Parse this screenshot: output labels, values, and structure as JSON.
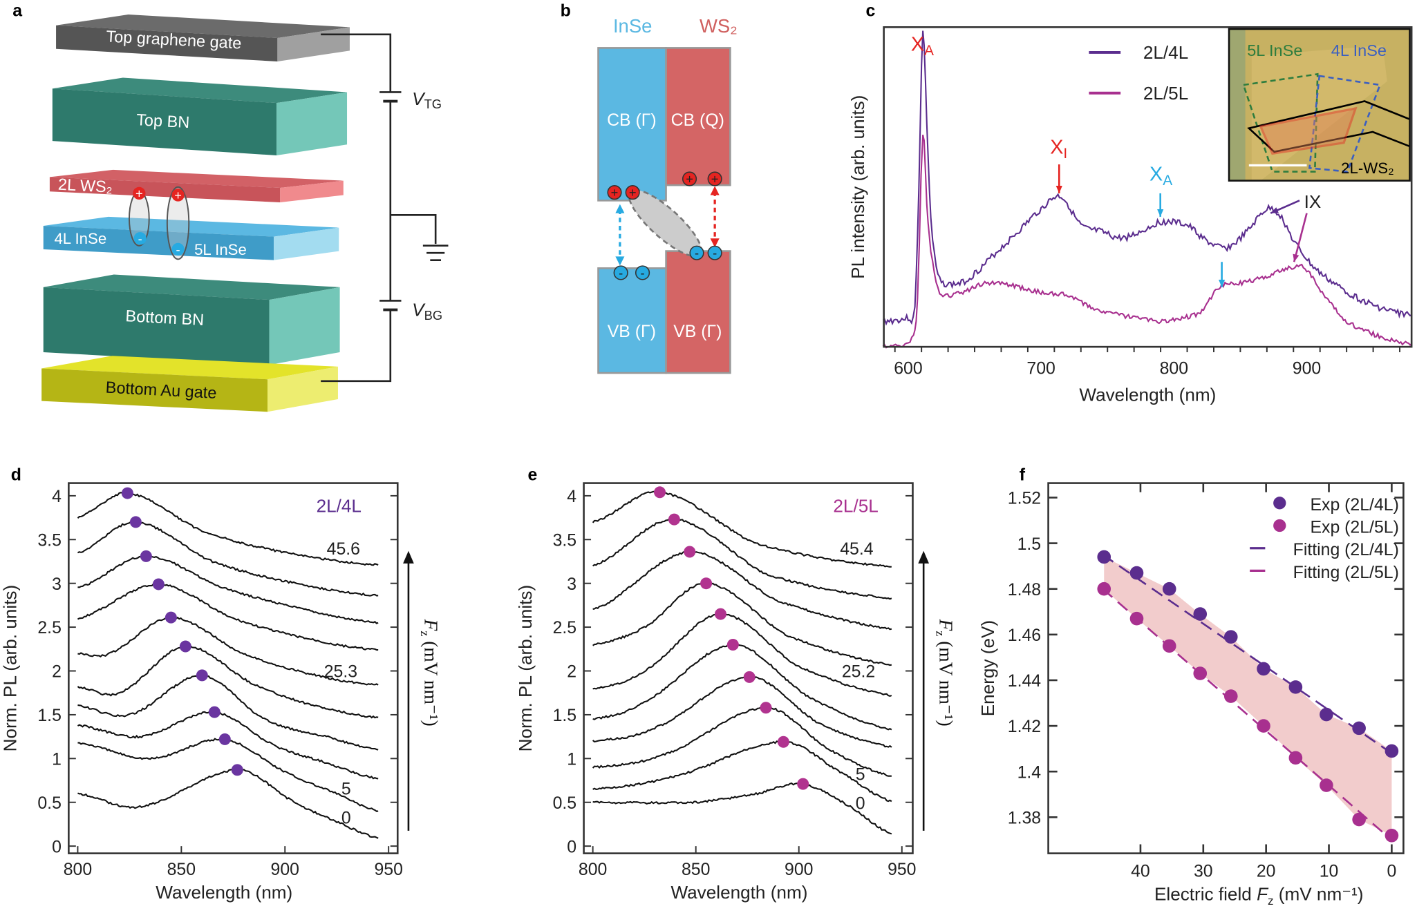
{
  "panel_labels": {
    "a": "a",
    "b": "b",
    "c": "c",
    "d": "d",
    "e": "e",
    "f": "f"
  },
  "colors": {
    "purple": "#5b2d8e",
    "magenta": "#a8308f",
    "red": "#e52421",
    "cyan": "#27aae1",
    "fill_band": "#f2cccc"
  },
  "panel_a": {
    "layers": [
      "Top graphene gate",
      "Top BN",
      "2L WS₂",
      "4L InSe",
      "5L InSe",
      "Bottom BN",
      "Bottom Au gate"
    ],
    "vtg": {
      "v": "V",
      "sub": "TG"
    },
    "vbg": {
      "v": "V",
      "sub": "BG"
    },
    "hole_sign": "+",
    "electron_sign": "-"
  },
  "panel_b": {
    "inse": "InSe",
    "ws2": "WS₂",
    "cb_inse": "CB (Γ)",
    "cb_ws2": "CB (Q)",
    "vb_inse": "VB (Γ)",
    "vb_ws2": "VB (Γ)"
  },
  "chart_data": [
    {
      "panel": "c",
      "type": "line",
      "xlabel": "Wavelength (nm)",
      "ylabel": "PL intensity (arb. units)",
      "xlim": [
        581,
        979
      ],
      "xticks": [
        600,
        700,
        800,
        900
      ],
      "legend_position": "top-center",
      "series": [
        {
          "name": "2L/4L",
          "color": "#5b2d8e",
          "points": [
            [
              581,
              0.08
            ],
            [
              600,
              0.09
            ],
            [
              605,
              0.12
            ],
            [
              608,
              0.5
            ],
            [
              611,
              0.985
            ],
            [
              614,
              0.7
            ],
            [
              617,
              0.4
            ],
            [
              621,
              0.25
            ],
            [
              625,
              0.2
            ],
            [
              640,
              0.2
            ],
            [
              650,
              0.23
            ],
            [
              665,
              0.29
            ],
            [
              680,
              0.35
            ],
            [
              700,
              0.43
            ],
            [
              715,
              0.47
            ],
            [
              730,
              0.38
            ],
            [
              745,
              0.36
            ],
            [
              760,
              0.34
            ],
            [
              775,
              0.36
            ],
            [
              790,
              0.39
            ],
            [
              810,
              0.38
            ],
            [
              825,
              0.33
            ],
            [
              840,
              0.31
            ],
            [
              855,
              0.36
            ],
            [
              870,
              0.43
            ],
            [
              880,
              0.41
            ],
            [
              890,
              0.33
            ],
            [
              905,
              0.25
            ],
            [
              920,
              0.2
            ],
            [
              935,
              0.16
            ],
            [
              950,
              0.13
            ],
            [
              965,
              0.11
            ],
            [
              979,
              0.1
            ]
          ]
        },
        {
          "name": "2L/5L",
          "color": "#a8308f",
          "points": [
            [
              581,
              0
            ],
            [
              600,
              0.01
            ],
            [
              604,
              0.04
            ],
            [
              607,
              0.15
            ],
            [
              611,
              0.665
            ],
            [
              614,
              0.45
            ],
            [
              617,
              0.3
            ],
            [
              621,
              0.2
            ],
            [
              625,
              0.16
            ],
            [
              640,
              0.17
            ],
            [
              660,
              0.2
            ],
            [
              680,
              0.19
            ],
            [
              700,
              0.17
            ],
            [
              720,
              0.16
            ],
            [
              740,
              0.12
            ],
            [
              760,
              0.1
            ],
            [
              775,
              0.09
            ],
            [
              790,
              0.08
            ],
            [
              805,
              0.09
            ],
            [
              820,
              0.11
            ],
            [
              835,
              0.19
            ],
            [
              850,
              0.2
            ],
            [
              870,
              0.22
            ],
            [
              890,
              0.25
            ],
            [
              900,
              0.24
            ],
            [
              915,
              0.15
            ],
            [
              930,
              0.08
            ],
            [
              950,
              0.04
            ],
            [
              965,
              0.02
            ],
            [
              979,
              0.01
            ]
          ]
        }
      ],
      "annotations": [
        {
          "text": "X",
          "sub": "A",
          "color": "#e52421",
          "x": 611
        },
        {
          "text": "X",
          "sub": "I",
          "color": "#e52421",
          "x": 714
        },
        {
          "text": "X",
          "sub": "A",
          "color": "#27aae1",
          "x": 790
        },
        {
          "text": "IX",
          "color": "#000000"
        }
      ],
      "inset": {
        "labels": [
          "5L InSe",
          "4L InSe",
          "2L-WS₂"
        ],
        "colors": [
          "#2e7d3e",
          "#3b5fc0",
          "#000000"
        ]
      }
    },
    {
      "panel": "d",
      "type": "line",
      "label": "2L/4L",
      "label_color": "#5b2d8e",
      "xlabel": "Wavelength (nm)",
      "ylabel": "Norm. PL (arb. units)",
      "xlim": [
        800,
        950
      ],
      "ylim": [
        0,
        4.1
      ],
      "xticks": [
        "800",
        "850",
        "900",
        "950"
      ],
      "yticks": [
        "0",
        "0.5",
        "1",
        "1.5",
        "2",
        "2.5",
        "3",
        "3.5",
        "4"
      ],
      "side_label": {
        "f": "F",
        "sub": "z",
        "unit": " (mV nm⁻¹)"
      },
      "field_labels": [
        "0",
        "5",
        "25.3",
        "45.6"
      ],
      "peaks": [
        [
          877,
          0.87
        ],
        [
          871,
          1.22
        ],
        [
          866,
          1.53
        ],
        [
          860,
          1.95
        ],
        [
          852,
          2.28
        ],
        [
          845,
          2.61
        ],
        [
          839,
          2.99
        ],
        [
          833,
          3.31
        ],
        [
          828,
          3.7
        ],
        [
          824,
          4.03
        ]
      ],
      "curves": [
        [
          [
            800,
            0.6
          ],
          [
            830,
            0.45
          ],
          [
            877,
            0.87
          ],
          [
            905,
            0.5
          ],
          [
            925,
            0.28
          ],
          [
            945,
            0.09
          ]
        ],
        [
          [
            800,
            1.18
          ],
          [
            835,
            1.0
          ],
          [
            871,
            1.22
          ],
          [
            900,
            0.85
          ],
          [
            925,
            0.6
          ],
          [
            945,
            0.4
          ]
        ],
        [
          [
            800,
            1.38
          ],
          [
            830,
            1.25
          ],
          [
            866,
            1.53
          ],
          [
            895,
            1.15
          ],
          [
            920,
            0.95
          ],
          [
            945,
            0.77
          ]
        ],
        [
          [
            800,
            1.6
          ],
          [
            825,
            1.5
          ],
          [
            860,
            1.95
          ],
          [
            890,
            1.45
          ],
          [
            920,
            1.25
          ],
          [
            945,
            1.1
          ]
        ],
        [
          [
            800,
            1.82
          ],
          [
            820,
            1.75
          ],
          [
            852,
            2.28
          ],
          [
            885,
            1.85
          ],
          [
            915,
            1.6
          ],
          [
            945,
            1.47
          ]
        ],
        [
          [
            800,
            2.2
          ],
          [
            815,
            2.2
          ],
          [
            845,
            2.61
          ],
          [
            880,
            2.2
          ],
          [
            915,
            1.95
          ],
          [
            945,
            1.84
          ]
        ],
        [
          [
            800,
            2.6
          ],
          [
            839,
            2.99
          ],
          [
            875,
            2.6
          ],
          [
            915,
            2.35
          ],
          [
            945,
            2.24
          ]
        ],
        [
          [
            800,
            2.95
          ],
          [
            833,
            3.31
          ],
          [
            870,
            2.95
          ],
          [
            910,
            2.7
          ],
          [
            945,
            2.55
          ]
        ],
        [
          [
            800,
            3.35
          ],
          [
            828,
            3.7
          ],
          [
            865,
            3.25
          ],
          [
            905,
            3.0
          ],
          [
            945,
            2.86
          ]
        ],
        [
          [
            800,
            3.75
          ],
          [
            824,
            4.03
          ],
          [
            860,
            3.6
          ],
          [
            900,
            3.35
          ],
          [
            945,
            3.21
          ]
        ]
      ]
    },
    {
      "panel": "e",
      "type": "line",
      "label": "2L/5L",
      "label_color": "#a8308f",
      "xlabel": "Wavelength (nm)",
      "ylabel": "Norm. PL (arb. units)",
      "xlim": [
        800,
        950
      ],
      "ylim": [
        0,
        4.1
      ],
      "xticks": [
        "800",
        "850",
        "900",
        "950"
      ],
      "yticks": [
        "0",
        "0.5",
        "1",
        "1.5",
        "2",
        "2.5",
        "3",
        "3.5",
        "4"
      ],
      "side_label": {
        "f": "F",
        "sub": "z",
        "unit": " (mV nm⁻¹)"
      },
      "field_labels": [
        "0",
        "5",
        "25.2",
        "45.4"
      ],
      "peaks": [
        [
          902,
          0.71
        ],
        [
          892.5,
          1.19
        ],
        [
          884,
          1.58
        ],
        [
          876,
          1.93
        ],
        [
          868,
          2.3
        ],
        [
          862,
          2.65
        ],
        [
          855,
          3.0
        ],
        [
          847,
          3.36
        ],
        [
          839.5,
          3.73
        ],
        [
          832.5,
          4.04
        ]
      ],
      "curves": [
        [
          [
            800,
            0.5
          ],
          [
            850,
            0.5
          ],
          [
            880,
            0.6
          ],
          [
            902,
            0.71
          ],
          [
            925,
            0.45
          ],
          [
            945,
            0.14
          ]
        ],
        [
          [
            800,
            0.65
          ],
          [
            840,
            0.8
          ],
          [
            892.5,
            1.19
          ],
          [
            920,
            0.85
          ],
          [
            945,
            0.51
          ]
        ],
        [
          [
            800,
            0.9
          ],
          [
            835,
            1.05
          ],
          [
            884,
            1.58
          ],
          [
            915,
            1.1
          ],
          [
            945,
            0.8
          ]
        ],
        [
          [
            800,
            1.2
          ],
          [
            830,
            1.35
          ],
          [
            876,
            1.93
          ],
          [
            910,
            1.4
          ],
          [
            945,
            1.13
          ]
        ],
        [
          [
            800,
            1.45
          ],
          [
            825,
            1.65
          ],
          [
            868,
            2.3
          ],
          [
            905,
            1.7
          ],
          [
            945,
            1.33
          ]
        ],
        [
          [
            800,
            1.8
          ],
          [
            825,
            2.0
          ],
          [
            862,
            2.65
          ],
          [
            900,
            2.05
          ],
          [
            945,
            1.72
          ]
        ],
        [
          [
            800,
            2.3
          ],
          [
            825,
            2.5
          ],
          [
            855,
            3.0
          ],
          [
            895,
            2.4
          ],
          [
            945,
            2.07
          ]
        ],
        [
          [
            800,
            2.7
          ],
          [
            847,
            3.36
          ],
          [
            890,
            2.8
          ],
          [
            945,
            2.48
          ]
        ],
        [
          [
            800,
            3.2
          ],
          [
            839.5,
            3.73
          ],
          [
            885,
            3.1
          ],
          [
            945,
            2.83
          ]
        ],
        [
          [
            800,
            3.7
          ],
          [
            832.5,
            4.04
          ],
          [
            880,
            3.45
          ],
          [
            945,
            3.19
          ]
        ]
      ]
    },
    {
      "panel": "f",
      "type": "scatter",
      "xlabel": {
        "pre": "Electric field ",
        "f": "F",
        "sub": "z",
        "post": " (mV nm⁻¹)"
      },
      "ylabel": "Energy (eV)",
      "xlim": [
        47,
        -1
      ],
      "ylim": [
        1.37,
        1.53
      ],
      "x_reversed": true,
      "xticks": [
        "40",
        "30",
        "20",
        "10",
        "0"
      ],
      "yticks": [
        "1.38",
        "1.4",
        "1.42",
        "1.44",
        "1.46",
        "1.48",
        "1.5",
        "1.52"
      ],
      "legend_position": "top-right",
      "legend": [
        "Exp (2L/4L)",
        "Exp (2L/5L)",
        "Fitting (2L/4L)",
        "Fitting (2L/5L)"
      ],
      "x": [
        45.8,
        40.6,
        35.4,
        30.5,
        25.6,
        20.4,
        15.3,
        10.4,
        5.2,
        0
      ],
      "series": [
        {
          "name": "Exp (2L/4L)",
          "color": "#5b2d8e",
          "values": [
            1.494,
            1.487,
            1.48,
            1.469,
            1.459,
            1.445,
            1.437,
            1.425,
            1.419,
            1.409
          ]
        },
        {
          "name": "Exp (2L/5L)",
          "color": "#a8308f",
          "values": [
            1.48,
            1.467,
            1.455,
            1.443,
            1.433,
            1.42,
            1.406,
            1.394,
            1.379,
            1.372
          ]
        }
      ],
      "fits": [
        {
          "name": "Fitting (2L/4L)",
          "color": "#5b2d8e",
          "from": [
            46,
            1.495
          ],
          "to": [
            0,
            1.408
          ]
        },
        {
          "name": "Fitting (2L/5L)",
          "color": "#a8308f",
          "from": [
            46,
            1.48
          ],
          "to": [
            0,
            1.37
          ]
        }
      ]
    }
  ]
}
